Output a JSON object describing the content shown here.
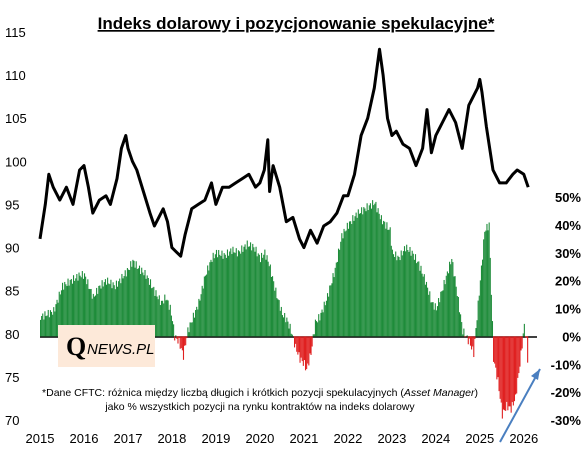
{
  "chart_data": {
    "type": "line+bar",
    "title": "Indeks dolarowy i pozycjonowanie spekulacyjne*",
    "logo": {
      "initial": "Q",
      "rest": "NEWS.PL"
    },
    "note": {
      "line1_before": "*Dane CFTC: różnica między liczbą długich i krótkich pozycji spekulacyjnych (",
      "line1_italic": "Asset Manager",
      "line1_after": ")",
      "line2": "jako % wszystkich pozycji na rynku kontraktów na indeks dolarowy"
    },
    "x_ticks": [
      "2015",
      "2016",
      "2017",
      "2018",
      "2019",
      "2020",
      "2021",
      "2022",
      "2023",
      "2024",
      "2025",
      "2026"
    ],
    "xlim": [
      2015.0,
      2026.3
    ],
    "y_left": {
      "ticks": [
        70,
        75,
        80,
        85,
        90,
        95,
        100,
        105,
        110,
        115
      ],
      "lim": [
        70,
        115
      ]
    },
    "y_right": {
      "ticks": [
        "50%",
        "40%",
        "30%",
        "20%",
        "10%",
        "0%",
        "-10%",
        "-20%",
        "-30%"
      ],
      "values": [
        50,
        40,
        30,
        20,
        10,
        0,
        -10,
        -20,
        -30
      ],
      "lim": [
        -30,
        50
      ]
    },
    "series": [
      {
        "kind": "line",
        "axis": "left",
        "color": "#000000",
        "x": [
          2015.0,
          2015.12,
          2015.2,
          2015.3,
          2015.45,
          2015.6,
          2015.75,
          2015.9,
          2016.0,
          2016.1,
          2016.2,
          2016.35,
          2016.5,
          2016.6,
          2016.75,
          2016.85,
          2016.95,
          2017.0,
          2017.1,
          2017.2,
          2017.35,
          2017.5,
          2017.6,
          2017.7,
          2017.8,
          2017.9,
          2018.0,
          2018.1,
          2018.2,
          2018.3,
          2018.45,
          2018.6,
          2018.75,
          2018.9,
          2019.0,
          2019.15,
          2019.3,
          2019.45,
          2019.6,
          2019.75,
          2019.9,
          2020.0,
          2020.1,
          2020.18,
          2020.22,
          2020.3,
          2020.45,
          2020.6,
          2020.75,
          2020.9,
          2021.0,
          2021.15,
          2021.3,
          2021.45,
          2021.6,
          2021.75,
          2021.9,
          2022.0,
          2022.15,
          2022.3,
          2022.45,
          2022.6,
          2022.72,
          2022.8,
          2022.9,
          2023.0,
          2023.1,
          2023.25,
          2023.4,
          2023.55,
          2023.7,
          2023.8,
          2023.9,
          2024.0,
          2024.15,
          2024.3,
          2024.45,
          2024.6,
          2024.75,
          2024.85,
          2024.95,
          2025.0,
          2025.05,
          2025.15,
          2025.3,
          2025.45,
          2025.6,
          2025.75,
          2025.85,
          2026.0,
          2026.1
        ],
        "values": [
          91.0,
          95.0,
          98.5,
          97.0,
          95.5,
          97.0,
          95.0,
          99.0,
          99.5,
          97.0,
          94.0,
          95.5,
          96.0,
          95.0,
          98.0,
          101.5,
          103.0,
          101.5,
          100.0,
          99.0,
          96.5,
          94.0,
          92.5,
          93.5,
          94.5,
          93.0,
          90.0,
          89.5,
          89.0,
          91.5,
          94.5,
          95.0,
          95.5,
          97.5,
          95.0,
          97.0,
          97.0,
          97.5,
          98.0,
          98.5,
          97.0,
          97.5,
          99.0,
          102.5,
          96.5,
          99.5,
          97.0,
          93.0,
          93.5,
          91.0,
          90.0,
          92.0,
          90.5,
          92.5,
          93.0,
          94.0,
          96.0,
          96.0,
          98.5,
          103.0,
          105.0,
          108.5,
          113.0,
          110.0,
          105.0,
          103.0,
          103.5,
          102.0,
          101.5,
          99.5,
          101.5,
          106.0,
          101.0,
          103.0,
          104.5,
          106.0,
          104.5,
          101.5,
          106.5,
          107.5,
          108.5,
          109.5,
          108.0,
          104.0,
          99.0,
          97.5,
          97.5,
          98.5,
          99.0,
          98.5,
          97.0
        ]
      },
      {
        "kind": "bar",
        "axis": "right",
        "positive_color": "#1e8c3a",
        "negative_color": "#e02020",
        "x": [
          2015.0,
          2015.3,
          2015.5,
          2015.7,
          2015.9,
          2016.0,
          2016.2,
          2016.35,
          2016.5,
          2016.7,
          2016.85,
          2017.0,
          2017.1,
          2017.2,
          2017.4,
          2017.6,
          2017.75,
          2017.85,
          2017.95,
          2018.0,
          2018.05,
          2018.15,
          2018.25,
          2018.35,
          2018.45,
          2018.6,
          2018.75,
          2018.9,
          2019.0,
          2019.2,
          2019.35,
          2019.5,
          2019.7,
          2019.85,
          2020.0,
          2020.1,
          2020.2,
          2020.35,
          2020.5,
          2020.6,
          2020.7,
          2020.8,
          2020.9,
          2021.0,
          2021.05,
          2021.15,
          2021.25,
          2021.35,
          2021.5,
          2021.7,
          2021.85,
          2022.0,
          2022.2,
          2022.4,
          2022.6,
          2022.75,
          2022.85,
          2022.95,
          2023.0,
          2023.15,
          2023.3,
          2023.45,
          2023.6,
          2023.75,
          2023.9,
          2024.0,
          2024.2,
          2024.35,
          2024.45,
          2024.6,
          2024.75,
          2024.85,
          2025.0,
          2025.1,
          2025.2,
          2025.3,
          2025.4,
          2025.5,
          2025.6,
          2025.7,
          2025.8,
          2025.9,
          2026.0,
          2026.05,
          2026.1
        ],
        "values": [
          7,
          9,
          18,
          20,
          22,
          22,
          14,
          18,
          20,
          18,
          21,
          24,
          27,
          25,
          22,
          16,
          12,
          14,
          10,
          6,
          0,
          -2,
          -7,
          2,
          6,
          12,
          22,
          28,
          30,
          29,
          31,
          30,
          33,
          32,
          28,
          30,
          26,
          16,
          8,
          6,
          2,
          -4,
          -8,
          -10,
          -12,
          -6,
          5,
          7,
          13,
          24,
          36,
          40,
          44,
          46,
          48,
          42,
          40,
          38,
          30,
          28,
          32,
          30,
          26,
          20,
          12,
          10,
          20,
          28,
          18,
          2,
          -2,
          -6,
          20,
          38,
          40,
          -8,
          -16,
          -28,
          -25,
          -26,
          -22,
          -10,
          4,
          -2,
          -15
        ]
      }
    ]
  }
}
